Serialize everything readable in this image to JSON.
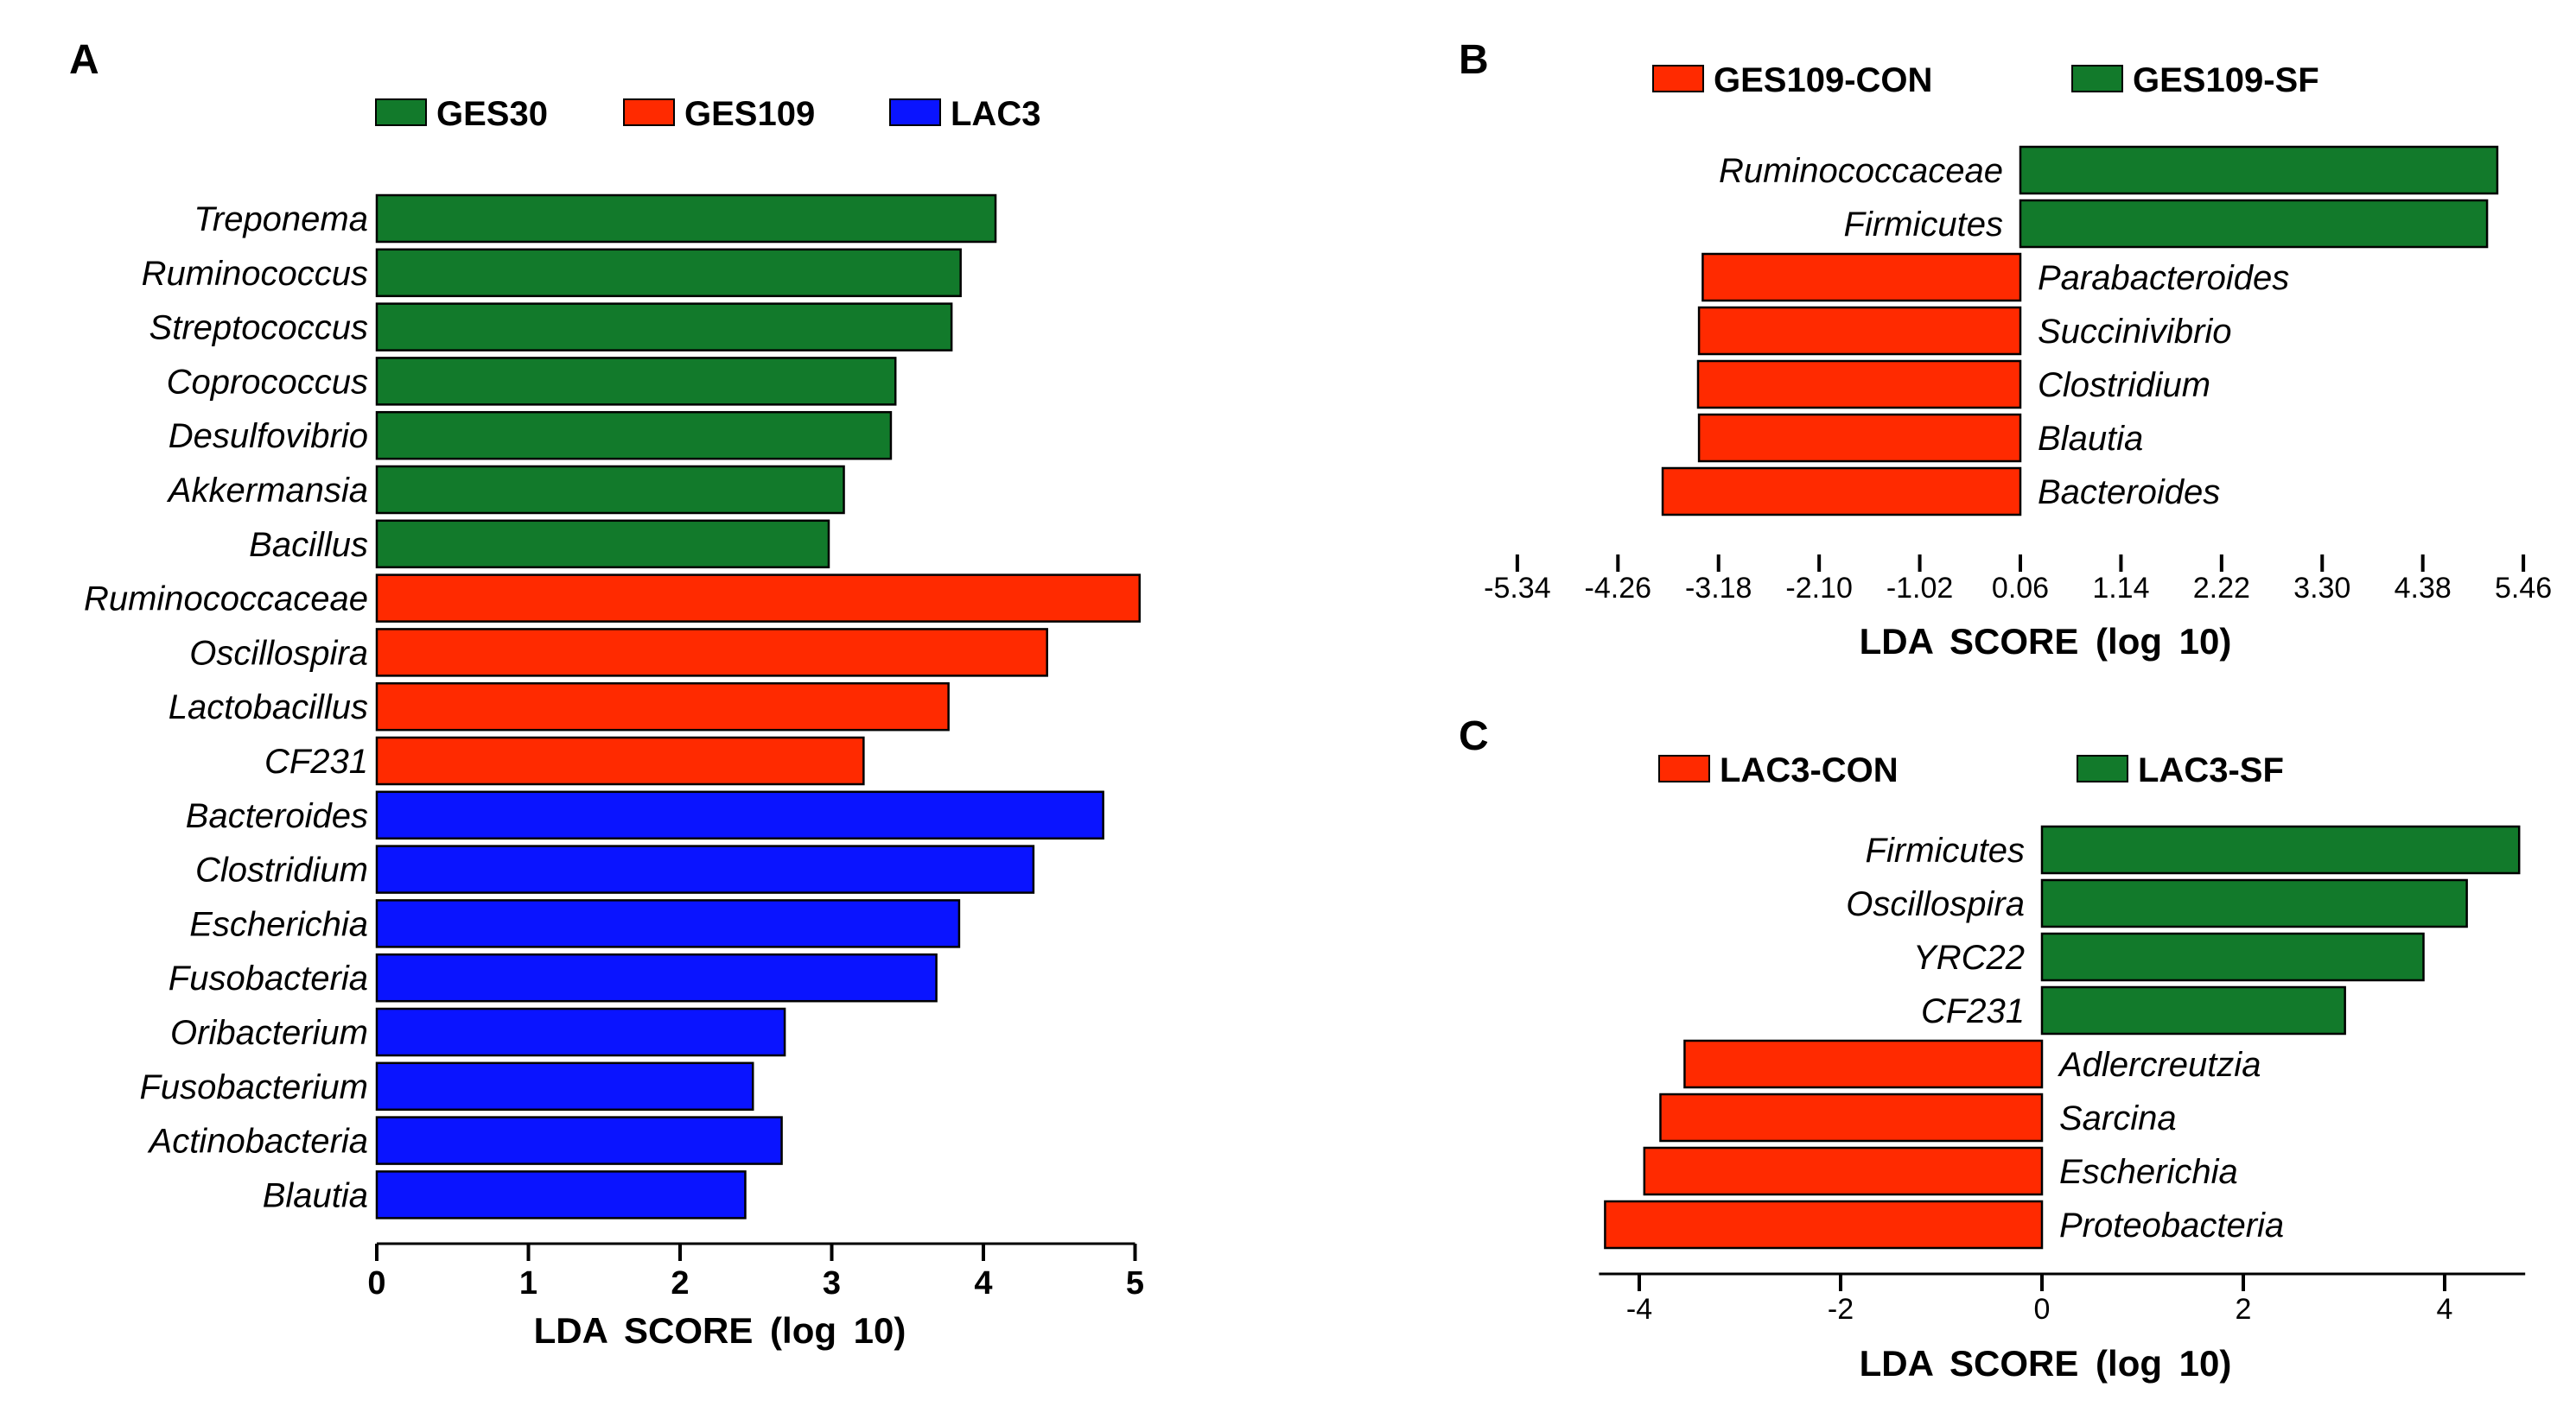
{
  "colors": {
    "green": "#127a2b",
    "red": "#ff2a00",
    "blue": "#0a14ff"
  },
  "chart_data": [
    {
      "type": "bar",
      "panel": "A",
      "orientation": "horizontal",
      "legend": [
        {
          "name": "GES30",
          "color": "#127a2b"
        },
        {
          "name": "GES109",
          "color": "#ff2a00"
        },
        {
          "name": "LAC3",
          "color": "#0a14ff"
        }
      ],
      "categories": [
        "Treponema",
        "Ruminococcus",
        "Streptococcus",
        "Coprococcus",
        "Desulfovibrio",
        "Akkermansia",
        "Bacillus",
        "Ruminococcaceae",
        "Oscillospira",
        "Lactobacillus",
        "CF231",
        "Bacteroides",
        "Clostridium",
        "Escherichia",
        "Fusobacteria",
        "Oribacterium",
        "Fusobacterium",
        "Actinobacteria",
        "Blautia"
      ],
      "values": [
        4.08,
        3.85,
        3.79,
        3.42,
        3.39,
        3.08,
        2.98,
        5.03,
        4.42,
        3.77,
        3.21,
        4.79,
        4.33,
        3.84,
        3.69,
        2.69,
        2.48,
        2.67,
        2.43
      ],
      "groups": [
        "GES30",
        "GES30",
        "GES30",
        "GES30",
        "GES30",
        "GES30",
        "GES30",
        "GES109",
        "GES109",
        "GES109",
        "GES109",
        "LAC3",
        "LAC3",
        "LAC3",
        "LAC3",
        "LAC3",
        "LAC3",
        "LAC3",
        "LAC3"
      ],
      "xlim": [
        0,
        5
      ],
      "xticks": [
        "0",
        "1",
        "2",
        "3",
        "4",
        "5"
      ],
      "xlabel": "LDA  SCORE  (log 10)"
    },
    {
      "type": "bar",
      "panel": "B",
      "orientation": "horizontal",
      "legend": [
        {
          "name": "GES109-CON",
          "color": "#ff2a00"
        },
        {
          "name": "GES109-SF",
          "color": "#127a2b"
        }
      ],
      "categories": [
        "Ruminococcaceae",
        "Firmicutes",
        "Parabacteroides",
        "Succinivibrio",
        "Clostridium",
        "Blautia",
        "Bacteroides"
      ],
      "values": [
        5.12,
        5.01,
        -3.41,
        -3.45,
        -3.46,
        -3.45,
        -3.84
      ],
      "groups": [
        "GES109-SF",
        "GES109-SF",
        "GES109-CON",
        "GES109-CON",
        "GES109-CON",
        "GES109-CON",
        "GES109-CON"
      ],
      "xlim": [
        -5.34,
        5.46
      ],
      "xticks": [
        "-5.34",
        "-4.26",
        "-3.18",
        "-2.10",
        "-1.02",
        "0.06",
        "1.14",
        "2.22",
        "3.30",
        "4.38",
        "5.46"
      ],
      "xlabel": "LDA  SCORE  (log 10)"
    },
    {
      "type": "bar",
      "panel": "C",
      "orientation": "horizontal",
      "legend": [
        {
          "name": "LAC3-CON",
          "color": "#ff2a00"
        },
        {
          "name": "LAC3-SF",
          "color": "#127a2b"
        }
      ],
      "categories": [
        "Firmicutes",
        "Oscillospira",
        "YRC22",
        "CF231",
        "Adlercreutzia",
        "Sarcina",
        "Escherichia",
        "Proteobacteria"
      ],
      "values": [
        4.74,
        4.22,
        3.79,
        3.01,
        -3.55,
        -3.79,
        -3.95,
        -4.34
      ],
      "groups": [
        "LAC3-SF",
        "LAC3-SF",
        "LAC3-SF",
        "LAC3-SF",
        "LAC3-CON",
        "LAC3-CON",
        "LAC3-CON",
        "LAC3-CON"
      ],
      "xlim": [
        -4.4,
        4.8
      ],
      "xticks": [
        "-4",
        "-2",
        "0",
        "2",
        "4"
      ],
      "xlabel": "LDA  SCORE  (log 10)"
    }
  ]
}
